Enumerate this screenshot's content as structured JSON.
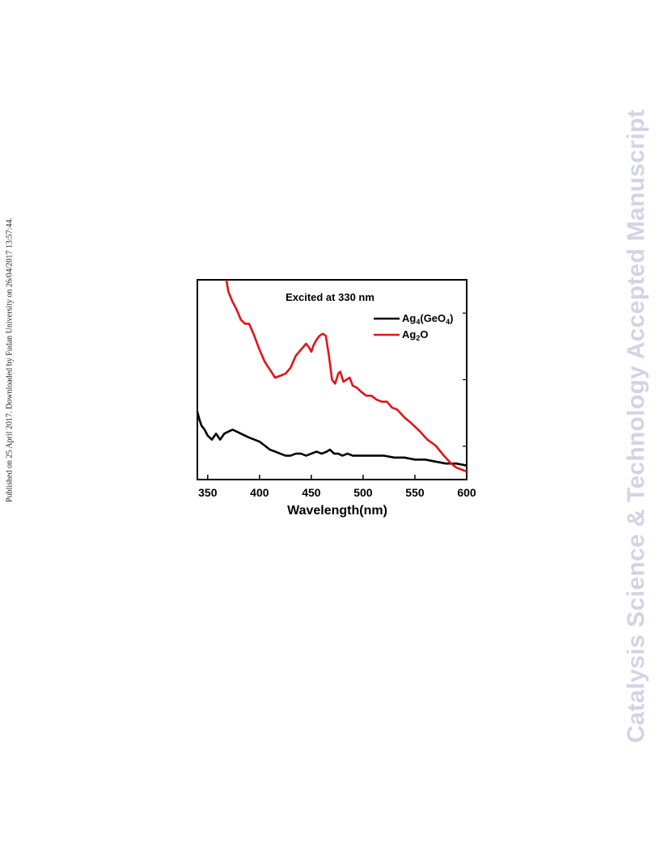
{
  "side_note": "Published on 25 April 2017. Downloaded by Fudan University on 26/04/2017 13:57:44.",
  "watermark": "Catalysis Science & Technology Accepted Manuscript",
  "colors": {
    "series_black": "#000000",
    "series_red": "#e0141b",
    "watermark": "#d3d3e6"
  },
  "chart_data": {
    "type": "line",
    "title": "",
    "annotation": "Excited at 330 nm",
    "xlabel": "Wavelength(nm)",
    "ylabel": "",
    "xlim": [
      340,
      600
    ],
    "ylim": [
      0,
      100
    ],
    "xticks": [
      350,
      400,
      450,
      500,
      550,
      600
    ],
    "y_tick_labels_shown": false,
    "grid": false,
    "legend_position": "top-right",
    "series": [
      {
        "legend_parts": [
          "Ag",
          "4",
          "(GeO",
          "4",
          ")"
        ],
        "color": "#000000",
        "x": [
          340,
          342,
          344,
          347,
          350,
          354,
          358,
          362,
          366,
          370,
          374,
          378,
          382,
          386,
          390,
          395,
          400,
          405,
          410,
          415,
          420,
          425,
          430,
          435,
          440,
          445,
          450,
          455,
          460,
          465,
          468,
          472,
          476,
          480,
          485,
          490,
          495,
          500,
          510,
          520,
          530,
          540,
          550,
          560,
          570,
          580,
          590,
          600
        ],
        "y": [
          34,
          30,
          27,
          25,
          22,
          20,
          23,
          20,
          23,
          24,
          25,
          24,
          23,
          22,
          21,
          20,
          19,
          17,
          15,
          14,
          13,
          12,
          12,
          13,
          13,
          12,
          13,
          14,
          13,
          14,
          15,
          13,
          13,
          12,
          13,
          12,
          12,
          12,
          12,
          12,
          11,
          11,
          10,
          10,
          9,
          8,
          8,
          7
        ]
      },
      {
        "legend_parts": [
          "Ag",
          "2",
          "O"
        ],
        "color": "#e0141b",
        "x": [
          368,
          370,
          374,
          378,
          382,
          386,
          390,
          395,
          400,
          405,
          410,
          415,
          420,
          425,
          430,
          435,
          440,
          445,
          448,
          450,
          452,
          455,
          458,
          461,
          464,
          467,
          470,
          473,
          476,
          478,
          481,
          484,
          487,
          490,
          494,
          498,
          503,
          508,
          513,
          518,
          523,
          528,
          533,
          540,
          547,
          555,
          562,
          570,
          578,
          585,
          590,
          595,
          600
        ],
        "y": [
          100,
          94,
          89,
          85,
          80,
          78,
          78,
          72,
          65,
          59,
          55,
          51,
          52,
          53,
          56,
          62,
          65,
          68,
          66,
          64,
          67,
          70,
          72,
          73,
          72,
          62,
          50,
          48,
          53,
          54,
          49,
          50,
          51,
          47,
          46,
          44,
          42,
          42,
          40,
          39,
          39,
          36,
          35,
          31,
          28,
          24,
          20,
          17,
          12,
          8,
          6,
          5,
          4
        ]
      }
    ]
  }
}
